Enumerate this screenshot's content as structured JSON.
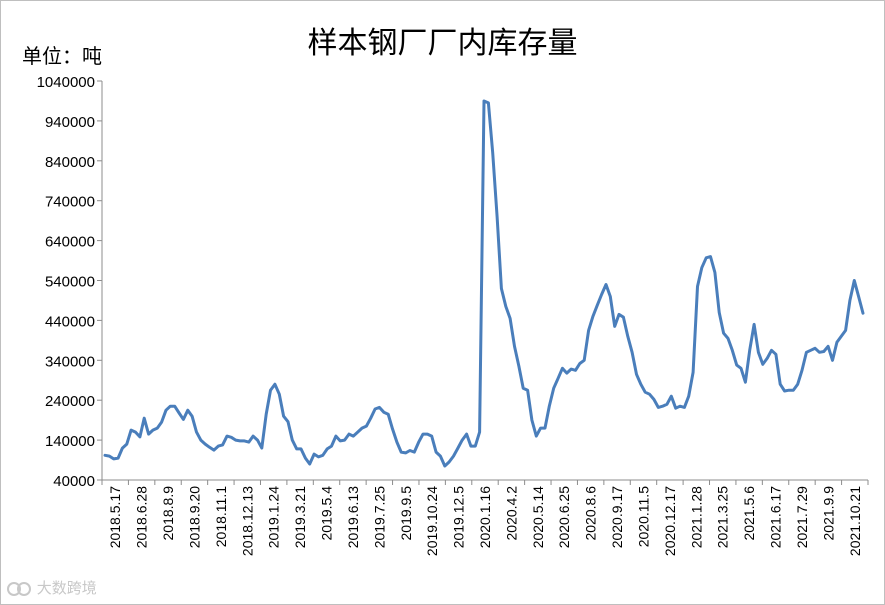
{
  "chart_data": {
    "type": "line",
    "title": "样本钢厂厂内库存量",
    "unit_label": "单位：吨",
    "ylim": [
      40000,
      1040000
    ],
    "y_ticks": [
      "1040000",
      "940000",
      "840000",
      "740000",
      "640000",
      "540000",
      "440000",
      "340000",
      "240000",
      "140000",
      "40000"
    ],
    "x_tick_labels": [
      "2018.5.17",
      "2018.6.28",
      "2018.8.9",
      "2018.9.20",
      "2018.11.1",
      "2018.12.13",
      "2019.1.24",
      "2019.3.21",
      "2019.5.4",
      "2019.6.13",
      "2019.7.25",
      "2019.9.5",
      "2019.10.24",
      "2019.12.5",
      "2020.1.16",
      "2020.4.2",
      "2020.5.14",
      "2020.6.25",
      "2020.8.6",
      "2020.9.17",
      "2020.11.5",
      "2020.12.17",
      "2021.1.28",
      "2021.3.25",
      "2021.5.6",
      "2021.6.17",
      "2021.7.29",
      "2021.9.9",
      "2021.10.21"
    ],
    "grid": false,
    "legend": "none",
    "series_color": "#4a7ebb",
    "series": [
      {
        "values": [
          102000,
          100000,
          93000,
          95000,
          120000,
          130000,
          165000,
          160000,
          148000,
          195000,
          155000,
          165000,
          170000,
          185000,
          215000,
          225000,
          225000,
          208000,
          192000,
          215000,
          200000,
          160000,
          140000,
          130000,
          122000,
          115000,
          125000,
          128000,
          150000,
          147000,
          140000,
          138000,
          138000,
          135000,
          150000,
          140000,
          120000,
          205000,
          265000,
          280000,
          255000,
          200000,
          186000,
          140000,
          118000,
          118000,
          95000,
          80000,
          105000,
          98000,
          102000,
          118000,
          125000,
          150000,
          138000,
          140000,
          155000,
          150000,
          160000,
          170000,
          175000,
          195000,
          218000,
          222000,
          210000,
          205000,
          168000,
          135000,
          110000,
          108000,
          114000,
          110000,
          135000,
          155000,
          155000,
          150000,
          110000,
          100000,
          75000,
          85000,
          100000,
          120000,
          140000,
          155000,
          125000,
          125000,
          160000,
          990000,
          985000,
          860000,
          700000,
          520000,
          475000,
          445000,
          375000,
          325000,
          270000,
          265000,
          190000,
          150000,
          170000,
          170000,
          225000,
          270000,
          295000,
          320000,
          308000,
          318000,
          315000,
          332000,
          340000,
          415000,
          450000,
          478000,
          505000,
          530000,
          500000,
          425000,
          455000,
          448000,
          400000,
          360000,
          305000,
          280000,
          260000,
          255000,
          242000,
          222000,
          225000,
          230000,
          250000,
          220000,
          225000,
          222000,
          250000,
          310000,
          525000,
          572000,
          597000,
          600000,
          560000,
          460000,
          408000,
          395000,
          365000,
          328000,
          320000,
          285000,
          365000,
          430000,
          360000,
          330000,
          345000,
          365000,
          355000,
          280000,
          263000,
          265000,
          265000,
          280000,
          315000,
          360000,
          365000,
          370000,
          360000,
          362000,
          375000,
          340000,
          385000,
          400000,
          415000,
          490000,
          540000,
          500000,
          458000
        ]
      }
    ]
  },
  "watermark": {
    "text": "大数跨境"
  }
}
